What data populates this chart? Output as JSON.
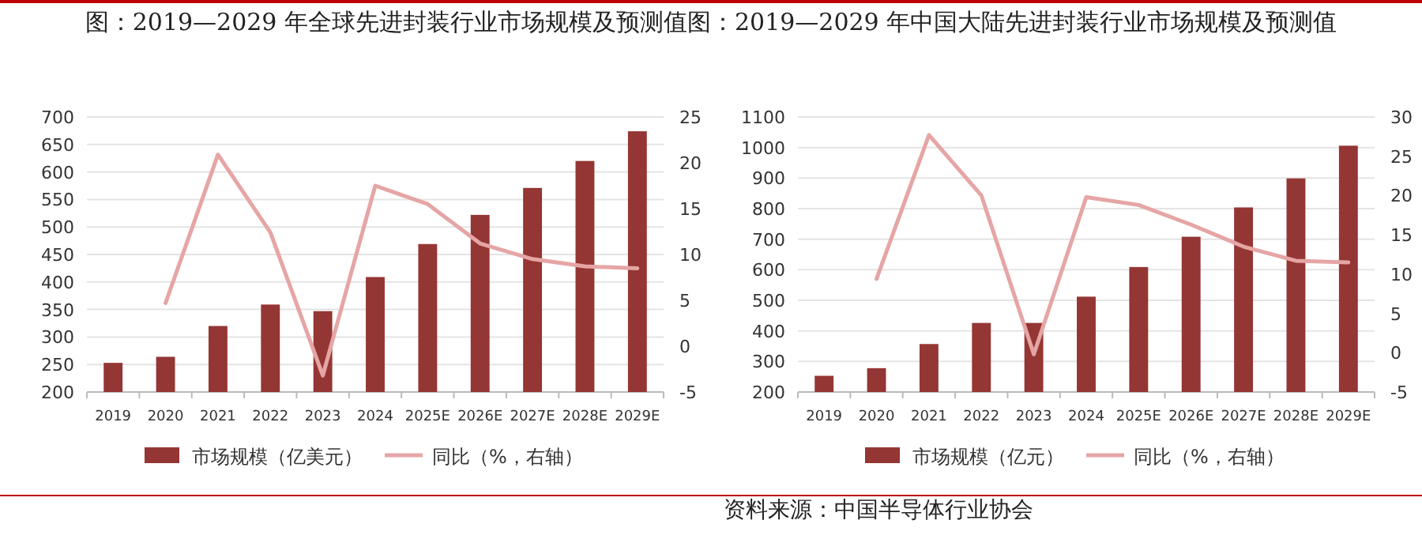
{
  "chart_data": [
    {
      "type": "bar",
      "title": "图：2019—2029 年全球先进封装行业市场规模及预测值",
      "categories": [
        "2019",
        "2020",
        "2021",
        "2022",
        "2023",
        "2024",
        "2025E",
        "2026E",
        "2027E",
        "2028E",
        "2029E"
      ],
      "series": [
        {
          "name": "市场规模（亿美元）",
          "color": "#943634",
          "values": [
            253,
            264,
            320,
            359,
            347,
            409,
            469,
            522,
            571,
            620,
            674
          ]
        },
        {
          "name": "同比（%，右轴）",
          "color": "#e6a5a5",
          "type": "line",
          "axis": "y2",
          "values": [
            null,
            4.7,
            20.9,
            12.4,
            -3.2,
            17.5,
            15.5,
            11.2,
            9.5,
            8.7,
            8.5
          ]
        }
      ],
      "ylim": [
        200,
        700
      ],
      "yticks": [
        200,
        250,
        300,
        350,
        400,
        450,
        500,
        550,
        600,
        650,
        700
      ],
      "y2lim": [
        -5,
        25
      ],
      "y2ticks": [
        -5,
        0,
        5,
        10,
        15,
        20,
        25
      ],
      "grid": "y",
      "legend": "bottom"
    },
    {
      "type": "bar",
      "title": "图：2019—2029 年中国大陆先进封装行业市场规模及预测值",
      "categories": [
        "2019",
        "2020",
        "2021",
        "2022",
        "2023",
        "2024",
        "2025E",
        "2026E",
        "2027E",
        "2028E",
        "2029E"
      ],
      "series": [
        {
          "name": "市场规模（亿元）",
          "color": "#943634",
          "values": [
            253,
            278,
            357,
            426,
            426,
            512,
            609,
            708,
            804,
            899,
            1006
          ]
        },
        {
          "name": "同比（%，右轴）",
          "color": "#e6a5a5",
          "type": "line",
          "axis": "y2",
          "values": [
            null,
            9.4,
            27.7,
            20.0,
            -0.2,
            19.8,
            18.8,
            16.3,
            13.5,
            11.7,
            11.5
          ]
        }
      ],
      "ylim": [
        200,
        1100
      ],
      "yticks": [
        200,
        300,
        400,
        500,
        600,
        700,
        800,
        900,
        1000,
        1100
      ],
      "y2lim": [
        -5,
        30
      ],
      "y2ticks": [
        -5,
        0,
        5,
        10,
        15,
        20,
        25,
        30
      ],
      "grid": "y",
      "legend": "bottom",
      "annotations": [
        "资料来源：中国半导体行业协会"
      ]
    }
  ]
}
